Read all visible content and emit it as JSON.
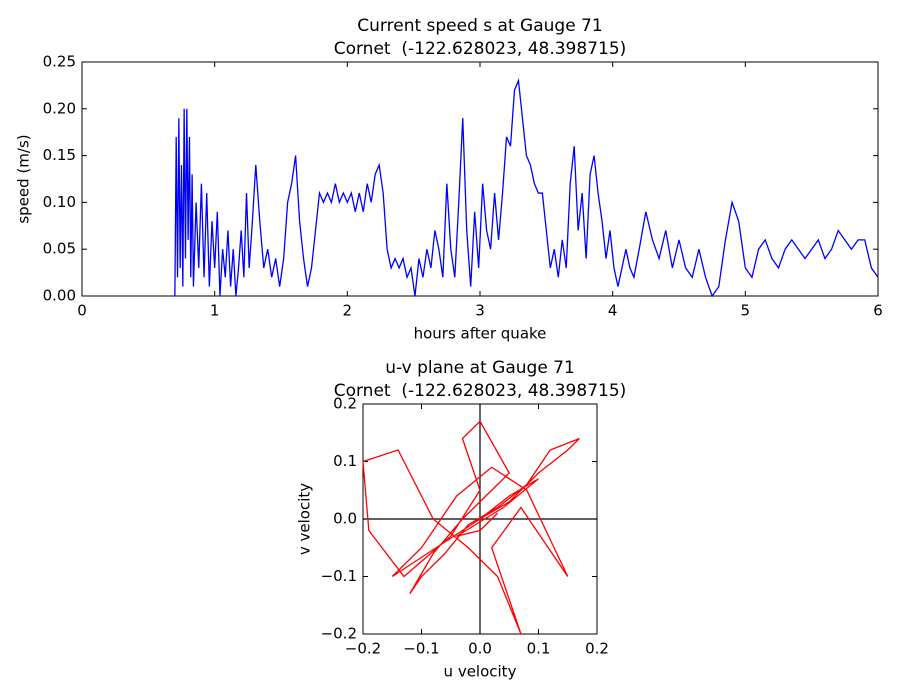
{
  "chart_data": [
    {
      "type": "line",
      "title": "Current speed s at Gauge 71",
      "subtitle": "Cornet  (-122.628023, 48.398715)",
      "xlabel": "hours after quake",
      "ylabel": "speed (m/s)",
      "xlim": [
        0,
        6
      ],
      "ylim": [
        0,
        0.25
      ],
      "xticks": [
        0,
        1,
        2,
        3,
        4,
        5,
        6
      ],
      "yticks": [
        {
          "value": 0,
          "label": "0.00"
        },
        {
          "value": 0.05,
          "label": "0.05"
        },
        {
          "value": 0.1,
          "label": "0.10"
        },
        {
          "value": 0.15,
          "label": "0.15"
        },
        {
          "value": 0.2,
          "label": "0.20"
        },
        {
          "value": 0.25,
          "label": "0.25"
        }
      ],
      "zero_lines": false,
      "series": [
        {
          "color": "#0000ff",
          "x": [
            0.7,
            0.71,
            0.72,
            0.73,
            0.74,
            0.75,
            0.76,
            0.77,
            0.78,
            0.79,
            0.8,
            0.81,
            0.82,
            0.83,
            0.84,
            0.86,
            0.88,
            0.9,
            0.92,
            0.94,
            0.96,
            0.98,
            1.0,
            1.02,
            1.04,
            1.06,
            1.08,
            1.1,
            1.12,
            1.14,
            1.16,
            1.18,
            1.2,
            1.22,
            1.24,
            1.26,
            1.28,
            1.31,
            1.34,
            1.37,
            1.4,
            1.43,
            1.46,
            1.49,
            1.52,
            1.55,
            1.58,
            1.61,
            1.64,
            1.67,
            1.7,
            1.73,
            1.76,
            1.79,
            1.82,
            1.85,
            1.88,
            1.91,
            1.94,
            1.97,
            2.0,
            2.03,
            2.06,
            2.09,
            2.12,
            2.15,
            2.18,
            2.21,
            2.24,
            2.27,
            2.3,
            2.33,
            2.36,
            2.39,
            2.42,
            2.45,
            2.48,
            2.51,
            2.54,
            2.57,
            2.6,
            2.63,
            2.66,
            2.69,
            2.72,
            2.75,
            2.78,
            2.81,
            2.84,
            2.87,
            2.9,
            2.93,
            2.96,
            2.99,
            3.02,
            3.05,
            3.08,
            3.11,
            3.14,
            3.17,
            3.2,
            3.23,
            3.26,
            3.29,
            3.32,
            3.35,
            3.38,
            3.41,
            3.44,
            3.47,
            3.5,
            3.53,
            3.56,
            3.59,
            3.62,
            3.65,
            3.68,
            3.71,
            3.74,
            3.77,
            3.8,
            3.83,
            3.86,
            3.89,
            3.92,
            3.95,
            3.98,
            4.01,
            4.04,
            4.07,
            4.1,
            4.13,
            4.16,
            4.2,
            4.25,
            4.3,
            4.35,
            4.4,
            4.45,
            4.5,
            4.55,
            4.6,
            4.65,
            4.7,
            4.75,
            4.8,
            4.85,
            4.9,
            4.95,
            5.0,
            5.05,
            5.1,
            5.15,
            5.2,
            5.25,
            5.3,
            5.35,
            5.4,
            5.45,
            5.5,
            5.55,
            5.6,
            5.65,
            5.7,
            5.75,
            5.8,
            5.85,
            5.9,
            5.95,
            6.0
          ],
          "values": [
            0.0,
            0.17,
            0.02,
            0.19,
            0.03,
            0.14,
            0.01,
            0.2,
            0.04,
            0.2,
            0.06,
            0.17,
            0.02,
            0.13,
            0.01,
            0.1,
            0.03,
            0.12,
            0.02,
            0.11,
            0.01,
            0.08,
            0.03,
            0.09,
            0.0,
            0.05,
            0.02,
            0.07,
            0.01,
            0.05,
            0.0,
            0.03,
            0.07,
            0.02,
            0.11,
            0.03,
            0.07,
            0.14,
            0.08,
            0.03,
            0.05,
            0.02,
            0.04,
            0.01,
            0.04,
            0.1,
            0.12,
            0.15,
            0.08,
            0.04,
            0.01,
            0.03,
            0.07,
            0.11,
            0.1,
            0.11,
            0.1,
            0.12,
            0.1,
            0.11,
            0.1,
            0.11,
            0.09,
            0.11,
            0.09,
            0.12,
            0.1,
            0.13,
            0.14,
            0.11,
            0.05,
            0.03,
            0.04,
            0.03,
            0.04,
            0.02,
            0.03,
            0.0,
            0.04,
            0.02,
            0.05,
            0.03,
            0.07,
            0.05,
            0.02,
            0.12,
            0.05,
            0.02,
            0.1,
            0.19,
            0.07,
            0.01,
            0.09,
            0.03,
            0.12,
            0.07,
            0.05,
            0.11,
            0.06,
            0.11,
            0.17,
            0.16,
            0.22,
            0.23,
            0.19,
            0.15,
            0.14,
            0.12,
            0.11,
            0.11,
            0.07,
            0.03,
            0.05,
            0.02,
            0.06,
            0.03,
            0.12,
            0.16,
            0.07,
            0.11,
            0.04,
            0.13,
            0.15,
            0.11,
            0.08,
            0.04,
            0.07,
            0.03,
            0.01,
            0.03,
            0.05,
            0.03,
            0.02,
            0.05,
            0.09,
            0.06,
            0.04,
            0.07,
            0.03,
            0.06,
            0.03,
            0.02,
            0.05,
            0.02,
            0.0,
            0.01,
            0.06,
            0.1,
            0.08,
            0.03,
            0.02,
            0.05,
            0.06,
            0.04,
            0.03,
            0.05,
            0.06,
            0.05,
            0.04,
            0.05,
            0.06,
            0.04,
            0.05,
            0.07,
            0.06,
            0.05,
            0.06,
            0.06,
            0.03,
            0.02
          ]
        }
      ]
    },
    {
      "type": "line",
      "title": "u-v plane at Gauge 71",
      "subtitle": "Cornet  (-122.628023, 48.398715)",
      "xlabel": "u velocity",
      "ylabel": "v velocity",
      "xlim": [
        -0.2,
        0.2
      ],
      "ylim": [
        -0.2,
        0.2
      ],
      "xticks": [
        {
          "value": -0.2,
          "label": "−0.2"
        },
        {
          "value": -0.1,
          "label": "−0.1"
        },
        {
          "value": 0,
          "label": "0.0"
        },
        {
          "value": 0.1,
          "label": "0.1"
        },
        {
          "value": 0.2,
          "label": "0.2"
        }
      ],
      "yticks": [
        {
          "value": -0.2,
          "label": "−0.2"
        },
        {
          "value": -0.1,
          "label": "−0.1"
        },
        {
          "value": 0,
          "label": "0.0"
        },
        {
          "value": 0.1,
          "label": "0.1"
        },
        {
          "value": 0.2,
          "label": "0.2"
        }
      ],
      "zero_lines": true,
      "series": [
        {
          "color": "#ff0000",
          "x": [
            0,
            0.05,
            0.1,
            0.15,
            0.17,
            0.12,
            0.08,
            0.03,
            -0.02,
            -0.06,
            -0.1,
            -0.12,
            -0.08,
            -0.03,
            0.02,
            0.05,
            0,
            -0.03,
            0,
            -0.05,
            -0.13,
            -0.19,
            -0.2,
            -0.14,
            -0.08,
            -0.02,
            0.03,
            0.07,
            0.05,
            0.02,
            0.07,
            0.15,
            0.08,
            0.02,
            -0.04,
            -0.1,
            -0.15,
            -0.06,
            0,
            0.05,
            0.1,
            0.04,
            -0.04,
            0,
            0.03
          ],
          "values": [
            0,
            0.03,
            0.08,
            0.12,
            0.14,
            0.12,
            0.06,
            0.02,
            -0.01,
            -0.06,
            -0.1,
            -0.13,
            -0.06,
            0,
            0.05,
            0.08,
            0.17,
            0.14,
            0.05,
            -0.03,
            -0.1,
            -0.02,
            0.1,
            0.12,
            0,
            -0.05,
            -0.1,
            -0.2,
            -0.14,
            -0.05,
            0.02,
            -0.1,
            0.05,
            0.09,
            0.04,
            -0.05,
            -0.1,
            -0.04,
            0,
            0.04,
            0.07,
            0.02,
            -0.03,
            -0.02,
            0.01
          ]
        }
      ]
    }
  ]
}
